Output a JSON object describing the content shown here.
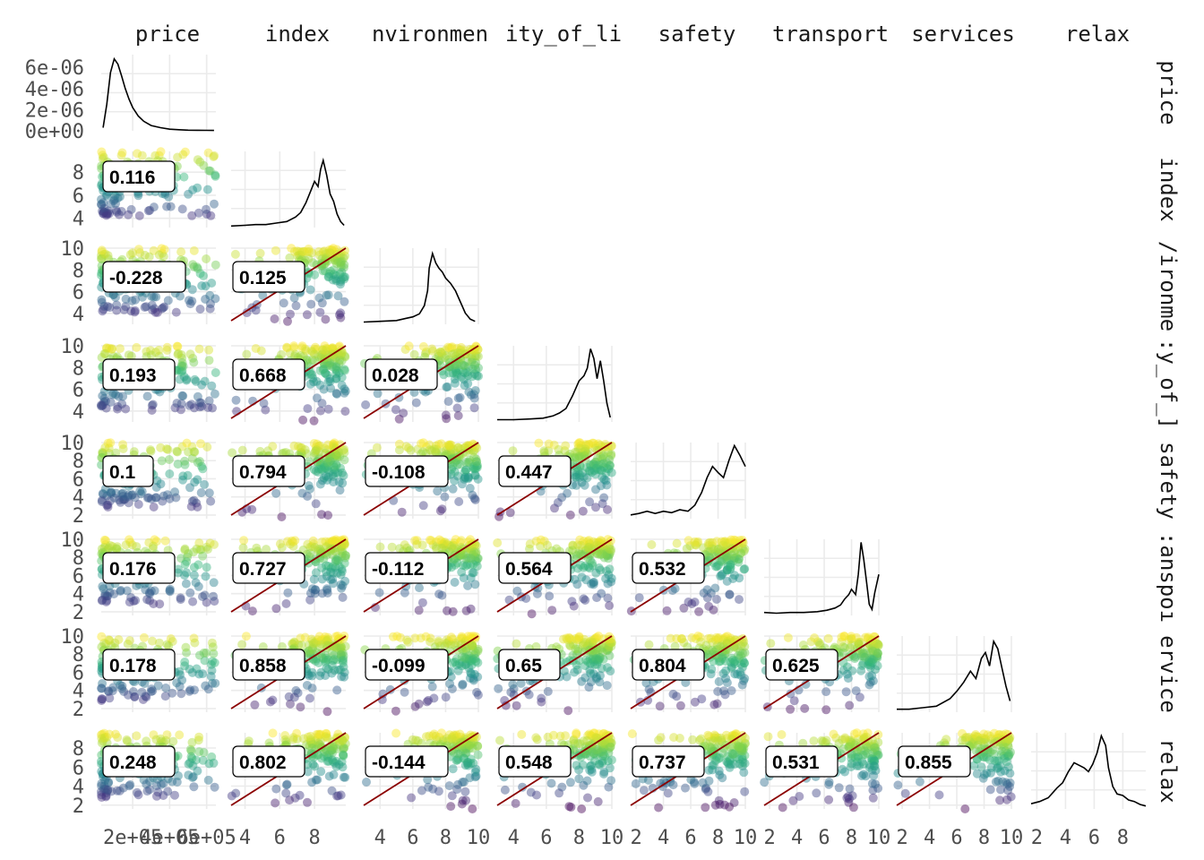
{
  "chart_data": {
    "type": "scatter",
    "title": "",
    "variables": [
      "price",
      "index",
      "environment",
      "quality_of_life",
      "safety",
      "transport",
      "services",
      "relax"
    ],
    "column_strip_labels": [
      "price",
      "index",
      "nvironmen",
      "ity_of_li",
      "safety",
      "transport",
      "services",
      "relax"
    ],
    "row_strip_labels": [
      "price",
      "index",
      "/ironme",
      ":y_of_]",
      "safety",
      ":anspoı",
      "ervice",
      "relax"
    ],
    "y_tick_labels": [
      [
        "6e-06",
        "4e-06",
        "2e-06",
        "0e+00"
      ],
      [
        "8",
        "6",
        "4"
      ],
      [
        "10",
        "8",
        "6",
        "4"
      ],
      [
        "10",
        "8",
        "6",
        "4"
      ],
      [
        "10",
        "8",
        "6",
        "4",
        "2"
      ],
      [
        "10",
        "8",
        "6",
        "4",
        "2"
      ],
      [
        "10",
        "8",
        "6",
        "4",
        "2"
      ],
      [
        "8",
        "6",
        "4",
        "2"
      ]
    ],
    "x_tick_labels": [
      [
        "2e+05",
        "4e+05",
        "6e+05"
      ],
      [
        "4",
        "6",
        "8"
      ],
      [
        "4",
        "6",
        "8",
        "10"
      ],
      [
        "4",
        "6",
        "8",
        "10"
      ],
      [
        "2",
        "4",
        "6",
        "8",
        "10"
      ],
      [
        "2",
        "4",
        "6",
        "8",
        "10"
      ],
      [
        "2",
        "4",
        "6",
        "8",
        "10"
      ],
      [
        "2",
        "4",
        "6",
        "8"
      ]
    ],
    "x_tick_values": [
      [
        200000,
        400000,
        600000
      ],
      [
        4,
        6,
        8
      ],
      [
        4,
        6,
        8,
        10
      ],
      [
        4,
        6,
        8,
        10
      ],
      [
        2,
        4,
        6,
        8,
        10
      ],
      [
        2,
        4,
        6,
        8,
        10
      ],
      [
        2,
        4,
        6,
        8,
        10
      ],
      [
        2,
        4,
        6,
        8
      ]
    ],
    "y_tick_values": [
      [
        6e-06,
        4e-06,
        2e-06,
        0
      ],
      [
        8,
        6,
        4
      ],
      [
        10,
        8,
        6,
        4
      ],
      [
        10,
        8,
        6,
        4
      ],
      [
        10,
        8,
        6,
        4,
        2
      ],
      [
        10,
        8,
        6,
        4,
        2
      ],
      [
        10,
        8,
        6,
        4,
        2
      ],
      [
        8,
        6,
        4,
        2
      ]
    ],
    "axis_ranges": [
      [
        30000,
        650000
      ],
      [
        3.2,
        9.8
      ],
      [
        3.0,
        10.0
      ],
      [
        3.0,
        10.0
      ],
      [
        1.6,
        10.0
      ],
      [
        1.6,
        10.0
      ],
      [
        1.6,
        10.0
      ],
      [
        1.6,
        9.6
      ]
    ],
    "price_density_ylim": [
      0,
      7.2e-06
    ],
    "correlations": [
      {
        "row": 1,
        "col": 0,
        "value": "0.116"
      },
      {
        "row": 2,
        "col": 0,
        "value": "-0.228"
      },
      {
        "row": 2,
        "col": 1,
        "value": "0.125"
      },
      {
        "row": 3,
        "col": 0,
        "value": "0.193"
      },
      {
        "row": 3,
        "col": 1,
        "value": "0.668"
      },
      {
        "row": 3,
        "col": 2,
        "value": "0.028"
      },
      {
        "row": 4,
        "col": 0,
        "value": "0.1"
      },
      {
        "row": 4,
        "col": 1,
        "value": "0.794"
      },
      {
        "row": 4,
        "col": 2,
        "value": "-0.108"
      },
      {
        "row": 4,
        "col": 3,
        "value": "0.447"
      },
      {
        "row": 5,
        "col": 0,
        "value": "0.176"
      },
      {
        "row": 5,
        "col": 1,
        "value": "0.727"
      },
      {
        "row": 5,
        "col": 2,
        "value": "-0.112"
      },
      {
        "row": 5,
        "col": 3,
        "value": "0.564"
      },
      {
        "row": 5,
        "col": 4,
        "value": "0.532"
      },
      {
        "row": 6,
        "col": 0,
        "value": "0.178"
      },
      {
        "row": 6,
        "col": 1,
        "value": "0.858"
      },
      {
        "row": 6,
        "col": 2,
        "value": "-0.099"
      },
      {
        "row": 6,
        "col": 3,
        "value": "0.65"
      },
      {
        "row": 6,
        "col": 4,
        "value": "0.804"
      },
      {
        "row": 6,
        "col": 5,
        "value": "0.625"
      },
      {
        "row": 7,
        "col": 0,
        "value": "0.248"
      },
      {
        "row": 7,
        "col": 1,
        "value": "0.802"
      },
      {
        "row": 7,
        "col": 2,
        "value": "-0.144"
      },
      {
        "row": 7,
        "col": 3,
        "value": "0.548"
      },
      {
        "row": 7,
        "col": 4,
        "value": "0.737"
      },
      {
        "row": 7,
        "col": 5,
        "value": "0.531"
      },
      {
        "row": 7,
        "col": 6,
        "value": "0.855"
      }
    ],
    "densities": [
      {
        "var": "price",
        "x": [
          40000,
          60000,
          80000,
          100000,
          120000,
          140000,
          160000,
          180000,
          200000,
          230000,
          260000,
          300000,
          350000,
          400000,
          450000,
          500000,
          550000,
          600000,
          640000
        ],
        "y": [
          3e-07,
          2.5e-06,
          5.5e-06,
          6.8e-06,
          6.3e-06,
          5.2e-06,
          4e-06,
          3e-06,
          2.2e-06,
          1.4e-06,
          9e-07,
          5e-07,
          3e-07,
          1.5e-07,
          1e-07,
          6e-08,
          5e-08,
          4e-08,
          3e-08
        ]
      },
      {
        "var": "index",
        "x": [
          3.2,
          4.0,
          4.6,
          5.2,
          5.8,
          6.4,
          6.9,
          7.2,
          7.5,
          7.8,
          8.0,
          8.2,
          8.35,
          8.5,
          8.7,
          8.9,
          9.1,
          9.3,
          9.5,
          9.7
        ],
        "y": [
          0.02,
          0.03,
          0.04,
          0.04,
          0.06,
          0.08,
          0.14,
          0.2,
          0.33,
          0.5,
          0.62,
          0.55,
          0.78,
          0.9,
          0.7,
          0.45,
          0.35,
          0.18,
          0.08,
          0.03
        ]
      },
      {
        "var": "environment",
        "x": [
          3.0,
          4.0,
          5.0,
          5.6,
          6.0,
          6.4,
          6.7,
          6.9,
          7.0,
          7.2,
          7.4,
          7.6,
          7.8,
          8.0,
          8.3,
          8.6,
          8.9,
          9.2,
          9.5,
          9.8
        ],
        "y": [
          0.03,
          0.04,
          0.05,
          0.08,
          0.1,
          0.14,
          0.25,
          0.45,
          0.75,
          0.95,
          0.82,
          0.75,
          0.7,
          0.62,
          0.55,
          0.45,
          0.3,
          0.15,
          0.07,
          0.04
        ]
      },
      {
        "var": "quality_of_life",
        "x": [
          3.0,
          4.0,
          5.0,
          5.8,
          6.4,
          6.8,
          7.2,
          7.6,
          8.0,
          8.3,
          8.5,
          8.7,
          8.9,
          9.1,
          9.3,
          9.5,
          9.7,
          9.9
        ],
        "y": [
          0.03,
          0.03,
          0.04,
          0.05,
          0.08,
          0.12,
          0.18,
          0.35,
          0.55,
          0.62,
          0.72,
          0.98,
          0.85,
          0.58,
          0.82,
          0.55,
          0.25,
          0.06
        ]
      },
      {
        "var": "safety",
        "x": [
          1.6,
          2.2,
          2.8,
          3.4,
          4.0,
          4.6,
          5.2,
          5.8,
          6.3,
          6.8,
          7.2,
          7.6,
          8.0,
          8.4,
          8.8,
          9.2,
          9.6,
          10.0
        ],
        "y": [
          0.05,
          0.07,
          0.1,
          0.07,
          0.1,
          0.08,
          0.12,
          0.1,
          0.18,
          0.35,
          0.55,
          0.7,
          0.62,
          0.55,
          0.78,
          0.98,
          0.85,
          0.7
        ]
      },
      {
        "var": "transport",
        "x": [
          1.6,
          2.5,
          3.5,
          4.5,
          5.5,
          6.2,
          6.8,
          7.2,
          7.5,
          7.8,
          8.0,
          8.3,
          8.5,
          8.7,
          8.9,
          9.1,
          9.3,
          9.5,
          9.7,
          10.0
        ],
        "y": [
          0.04,
          0.03,
          0.04,
          0.04,
          0.05,
          0.07,
          0.1,
          0.14,
          0.22,
          0.28,
          0.35,
          0.28,
          0.55,
          0.98,
          0.75,
          0.45,
          0.15,
          0.08,
          0.3,
          0.55
        ]
      },
      {
        "var": "services",
        "x": [
          1.6,
          2.5,
          3.5,
          4.5,
          5.5,
          6.0,
          6.5,
          7.0,
          7.4,
          7.8,
          8.1,
          8.4,
          8.7,
          9.0,
          9.3,
          9.6,
          9.9
        ],
        "y": [
          0.04,
          0.04,
          0.06,
          0.08,
          0.18,
          0.28,
          0.4,
          0.55,
          0.45,
          0.72,
          0.8,
          0.62,
          0.95,
          0.85,
          0.6,
          0.35,
          0.15
        ]
      },
      {
        "var": "relax",
        "x": [
          1.6,
          2.2,
          2.8,
          3.4,
          3.8,
          4.2,
          4.6,
          5.0,
          5.3,
          5.6,
          5.9,
          6.2,
          6.5,
          6.8,
          7.0,
          7.3,
          7.6,
          8.0,
          8.4,
          8.8,
          9.2,
          9.6
        ],
        "y": [
          0.07,
          0.1,
          0.15,
          0.28,
          0.35,
          0.5,
          0.62,
          0.58,
          0.55,
          0.5,
          0.6,
          0.75,
          0.98,
          0.85,
          0.55,
          0.3,
          0.2,
          0.18,
          0.12,
          0.1,
          0.06,
          0.04
        ]
      }
    ],
    "point_color_scale": "viridis",
    "point_color_stops": [
      "#fde725",
      "#90d743",
      "#35b779",
      "#21918c",
      "#31688e",
      "#443983",
      "#440154"
    ],
    "reference_line_color": "#8b0000",
    "grid": true,
    "legend": "none"
  }
}
